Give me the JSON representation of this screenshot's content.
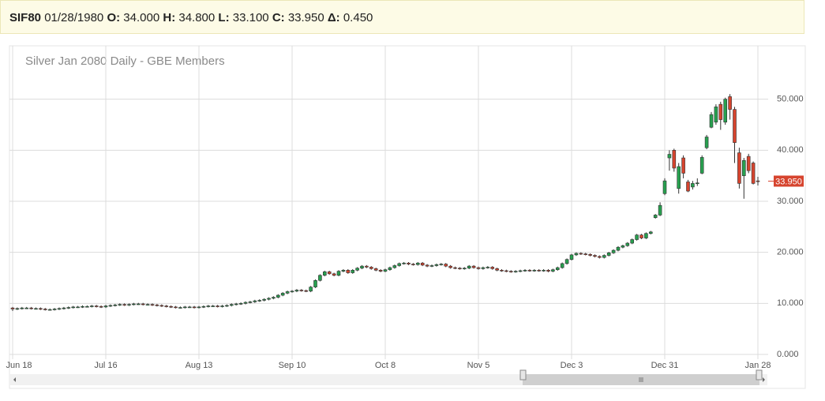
{
  "header": {
    "symbol": "SIF80",
    "date": "01/28/1980",
    "fields": [
      {
        "label": "O:",
        "value": "34.000"
      },
      {
        "label": "H:",
        "value": "34.800"
      },
      {
        "label": "L:",
        "value": "33.100"
      },
      {
        "label": "C:",
        "value": "33.950"
      },
      {
        "label": "Δ:",
        "value": "0.450"
      }
    ]
  },
  "chart_data": {
    "type": "candlestick",
    "title": "Silver Jan 2080 Daily - GBE Members",
    "up_color": "#27a04f",
    "down_color": "#d6442e",
    "grid": true,
    "ylim": [
      0,
      60
    ],
    "yticks": [
      {
        "value": 0,
        "label": "0.000"
      },
      {
        "value": 10,
        "label": "10.000"
      },
      {
        "value": 20,
        "label": "20.000"
      },
      {
        "value": 30,
        "label": "30.000"
      },
      {
        "value": 40,
        "label": "40.000"
      },
      {
        "value": 50,
        "label": "50.000"
      }
    ],
    "last_price": {
      "value": 33.95,
      "label": "33.950"
    },
    "categories": [
      "Jun 18",
      null,
      null,
      null,
      null,
      null,
      null,
      null,
      null,
      null,
      null,
      null,
      null,
      null,
      null,
      null,
      null,
      null,
      null,
      null,
      "Jul 16",
      null,
      null,
      null,
      null,
      null,
      null,
      null,
      null,
      null,
      null,
      null,
      null,
      null,
      null,
      null,
      null,
      null,
      null,
      null,
      "Aug 13",
      null,
      null,
      null,
      null,
      null,
      null,
      null,
      null,
      null,
      null,
      null,
      null,
      null,
      null,
      null,
      null,
      null,
      null,
      null,
      "Sep 10",
      null,
      null,
      null,
      null,
      null,
      null,
      null,
      null,
      null,
      null,
      null,
      null,
      null,
      null,
      null,
      null,
      null,
      null,
      null,
      "Oct 8",
      null,
      null,
      null,
      null,
      null,
      null,
      null,
      null,
      null,
      null,
      null,
      null,
      null,
      null,
      null,
      null,
      null,
      null,
      null,
      "Nov 5",
      null,
      null,
      null,
      null,
      null,
      null,
      null,
      null,
      null,
      null,
      null,
      null,
      null,
      null,
      null,
      null,
      null,
      null,
      null,
      "Dec 3",
      null,
      null,
      null,
      null,
      null,
      null,
      null,
      null,
      null,
      null,
      null,
      null,
      null,
      null,
      null,
      null,
      null,
      null,
      null,
      "Dec 31",
      null,
      null,
      null,
      null,
      null,
      null,
      null,
      null,
      null,
      null,
      null,
      null,
      null,
      null,
      null,
      null,
      null,
      null,
      null,
      "Jan 28"
    ],
    "open": [
      9.1,
      8.9,
      9.0,
      9.1,
      9.1,
      9.0,
      9.0,
      8.9,
      8.8,
      8.8,
      8.9,
      9.0,
      9.1,
      9.2,
      9.3,
      9.3,
      9.4,
      9.4,
      9.5,
      9.4,
      9.3,
      9.5,
      9.6,
      9.7,
      9.8,
      9.7,
      9.8,
      9.9,
      9.9,
      9.8,
      9.8,
      9.7,
      9.6,
      9.5,
      9.4,
      9.3,
      9.2,
      9.2,
      9.3,
      9.3,
      9.2,
      9.3,
      9.4,
      9.5,
      9.5,
      9.4,
      9.5,
      9.6,
      9.8,
      9.9,
      10.0,
      10.2,
      10.3,
      10.5,
      10.6,
      10.8,
      11.0,
      11.2,
      11.6,
      12.0,
      12.3,
      12.4,
      12.6,
      12.5,
      12.4,
      13.2,
      14.5,
      15.5,
      16.2,
      15.8,
      15.5,
      16.3,
      16.5,
      16.0,
      16.5,
      16.9,
      17.3,
      17.1,
      16.8,
      16.5,
      16.3,
      16.6,
      17.0,
      17.4,
      17.8,
      17.9,
      17.7,
      17.6,
      17.9,
      17.5,
      17.3,
      17.4,
      17.6,
      17.7,
      17.3,
      17.0,
      16.9,
      16.8,
      16.9,
      17.3,
      17.0,
      16.8,
      17.0,
      17.1,
      16.8,
      16.5,
      16.4,
      16.3,
      16.2,
      16.3,
      16.4,
      16.5,
      16.4,
      16.5,
      16.4,
      16.5,
      16.3,
      16.6,
      17.0,
      17.8,
      18.6,
      19.5,
      19.8,
      19.7,
      19.6,
      19.4,
      19.2,
      19.0,
      19.4,
      19.9,
      20.4,
      21.0,
      21.3,
      21.8,
      22.5,
      23.4,
      22.8,
      23.7,
      26.8,
      27.3,
      31.5,
      38.5,
      40.0,
      32.5,
      38.5,
      33.8,
      32.8,
      33.6,
      35.5,
      40.5,
      44.5,
      45.5,
      49.0,
      45.5,
      50.5,
      48.0,
      39.5,
      35.0,
      38.8,
      37.5,
      34.0
    ],
    "high": [
      9.3,
      9.2,
      9.3,
      9.3,
      9.3,
      9.2,
      9.2,
      9.1,
      9.0,
      9.1,
      9.2,
      9.3,
      9.4,
      9.5,
      9.5,
      9.6,
      9.6,
      9.7,
      9.7,
      9.6,
      9.7,
      9.8,
      9.9,
      10.0,
      10.0,
      10.0,
      10.1,
      10.1,
      10.1,
      10.0,
      10.0,
      9.9,
      9.8,
      9.7,
      9.6,
      9.5,
      9.4,
      9.5,
      9.5,
      9.5,
      9.5,
      9.6,
      9.7,
      9.7,
      9.7,
      9.7,
      9.8,
      10.0,
      10.1,
      10.2,
      10.4,
      10.5,
      10.7,
      10.8,
      11.0,
      11.2,
      11.4,
      11.8,
      12.2,
      12.5,
      12.6,
      12.8,
      12.8,
      12.7,
      13.4,
      14.7,
      15.7,
      16.4,
      16.4,
      16.0,
      16.5,
      16.7,
      16.7,
      16.7,
      17.1,
      17.5,
      17.5,
      17.3,
      17.0,
      16.7,
      16.8,
      17.2,
      17.6,
      18.0,
      18.1,
      18.1,
      17.9,
      18.1,
      18.1,
      17.7,
      17.6,
      17.8,
      17.9,
      17.9,
      17.5,
      17.2,
      17.1,
      17.1,
      17.5,
      17.5,
      17.2,
      17.2,
      17.3,
      17.3,
      17.0,
      16.7,
      16.6,
      16.5,
      16.5,
      16.6,
      16.7,
      16.7,
      16.7,
      16.7,
      16.7,
      16.7,
      16.8,
      17.2,
      18.0,
      18.8,
      19.7,
      20.0,
      20.0,
      19.9,
      19.8,
      19.6,
      19.4,
      19.6,
      20.1,
      20.6,
      21.2,
      21.5,
      22.0,
      22.7,
      23.6,
      23.6,
      23.9,
      24.2,
      27.5,
      29.8,
      34.5,
      40.0,
      40.3,
      37.5,
      39.0,
      34.2,
      34.0,
      34.5,
      39.0,
      43.0,
      47.5,
      49.0,
      49.5,
      50.3,
      51.0,
      48.5,
      40.5,
      38.5,
      39.3,
      37.8,
      34.8
    ],
    "low": [
      8.5,
      8.7,
      8.8,
      8.9,
      8.8,
      8.8,
      8.7,
      8.6,
      8.6,
      8.6,
      8.7,
      8.8,
      8.9,
      9.0,
      9.1,
      9.1,
      9.2,
      9.2,
      9.2,
      9.1,
      9.1,
      9.3,
      9.4,
      9.5,
      9.5,
      9.5,
      9.6,
      9.7,
      9.6,
      9.6,
      9.5,
      9.4,
      9.3,
      9.2,
      9.1,
      9.0,
      9.0,
      9.0,
      9.1,
      9.0,
      9.0,
      9.1,
      9.2,
      9.3,
      9.2,
      9.2,
      9.3,
      9.4,
      9.6,
      9.7,
      9.8,
      10.0,
      10.1,
      10.3,
      10.4,
      10.6,
      10.8,
      11.0,
      11.4,
      11.8,
      12.1,
      12.2,
      12.3,
      12.2,
      12.2,
      13.0,
      14.3,
      15.3,
      15.6,
      15.3,
      15.3,
      16.1,
      15.8,
      15.8,
      16.3,
      16.7,
      16.9,
      16.6,
      16.3,
      16.1,
      16.1,
      16.4,
      16.8,
      17.2,
      17.6,
      17.5,
      17.4,
      17.4,
      17.3,
      17.1,
      17.1,
      17.2,
      17.4,
      17.1,
      16.8,
      16.7,
      16.6,
      16.6,
      16.7,
      16.8,
      16.6,
      16.6,
      16.8,
      16.6,
      16.3,
      16.2,
      16.1,
      16.0,
      16.0,
      16.1,
      16.2,
      16.2,
      16.2,
      16.2,
      16.2,
      16.1,
      16.1,
      16.4,
      16.8,
      17.6,
      18.4,
      19.3,
      19.5,
      19.4,
      19.2,
      19.0,
      18.8,
      18.8,
      19.2,
      19.7,
      20.2,
      20.8,
      21.1,
      21.6,
      22.3,
      22.6,
      22.6,
      23.5,
      26.6,
      27.1,
      31.2,
      36.0,
      35.8,
      31.5,
      34.5,
      31.8,
      32.3,
      33.0,
      35.3,
      40.2,
      44.3,
      45.0,
      44.0,
      45.0,
      46.0,
      37.5,
      32.5,
      30.5,
      35.5,
      33.3,
      33.1
    ],
    "close": [
      8.9,
      9.0,
      9.1,
      9.1,
      9.0,
      9.0,
      8.9,
      8.8,
      8.8,
      8.9,
      9.0,
      9.1,
      9.2,
      9.3,
      9.3,
      9.4,
      9.4,
      9.5,
      9.4,
      9.3,
      9.5,
      9.6,
      9.7,
      9.8,
      9.7,
      9.8,
      9.9,
      9.9,
      9.8,
      9.8,
      9.7,
      9.6,
      9.5,
      9.4,
      9.3,
      9.2,
      9.2,
      9.3,
      9.3,
      9.2,
      9.3,
      9.4,
      9.5,
      9.5,
      9.4,
      9.5,
      9.6,
      9.8,
      9.9,
      10.0,
      10.2,
      10.3,
      10.5,
      10.6,
      10.8,
      11.0,
      11.2,
      11.6,
      12.0,
      12.3,
      12.4,
      12.6,
      12.5,
      12.4,
      13.2,
      14.5,
      15.5,
      16.2,
      15.8,
      15.5,
      16.3,
      16.5,
      16.0,
      16.5,
      16.9,
      17.3,
      17.1,
      16.8,
      16.5,
      16.3,
      16.6,
      17.0,
      17.4,
      17.8,
      17.9,
      17.7,
      17.6,
      17.9,
      17.5,
      17.3,
      17.4,
      17.6,
      17.7,
      17.3,
      17.0,
      16.9,
      16.8,
      16.9,
      17.3,
      17.0,
      16.8,
      17.0,
      17.1,
      16.8,
      16.5,
      16.4,
      16.3,
      16.2,
      16.3,
      16.4,
      16.5,
      16.4,
      16.5,
      16.4,
      16.5,
      16.3,
      16.6,
      17.0,
      17.8,
      18.6,
      19.5,
      19.8,
      19.7,
      19.6,
      19.4,
      19.2,
      19.0,
      19.4,
      19.9,
      20.4,
      21.0,
      21.3,
      21.8,
      22.5,
      23.4,
      22.8,
      23.7,
      24.0,
      27.3,
      29.2,
      34.0,
      39.2,
      36.5,
      36.8,
      35.5,
      32.0,
      33.5,
      33.6,
      38.6,
      42.6,
      47.0,
      48.5,
      46.0,
      50.0,
      48.0,
      41.5,
      33.5,
      38.0,
      36.0,
      33.5,
      33.95
    ]
  }
}
